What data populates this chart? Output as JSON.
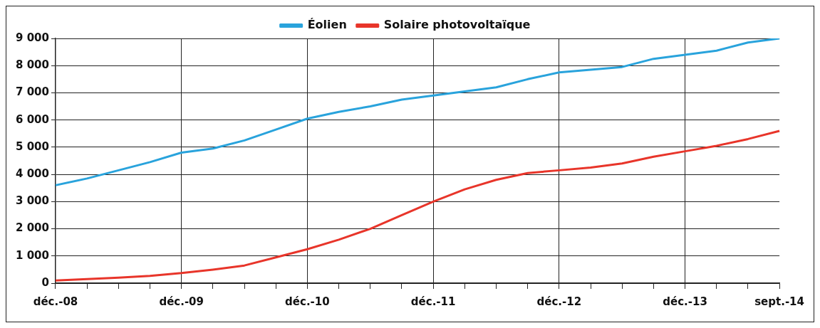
{
  "chart_data": {
    "type": "line",
    "categories": [
      "déc.-08",
      null,
      null,
      null,
      "déc.-09",
      null,
      null,
      null,
      "déc.-10",
      null,
      null,
      null,
      "déc.-11",
      null,
      null,
      null,
      "déc.-12",
      null,
      null,
      null,
      "déc.-13",
      null,
      null,
      "sept.-14"
    ],
    "series": [
      {
        "name": "Éolien",
        "color": "#29a3dc",
        "values": [
          3600,
          3850,
          4150,
          4450,
          4800,
          4950,
          5250,
          5650,
          6050,
          6300,
          6500,
          6750,
          6900,
          7050,
          7200,
          7500,
          7750,
          7850,
          7950,
          8250,
          8400,
          8550,
          8850,
          9000
        ]
      },
      {
        "name": "Solaire photovoltaïque",
        "color": "#e8352a",
        "values": [
          100,
          150,
          200,
          270,
          370,
          500,
          650,
          950,
          1250,
          1600,
          2000,
          2500,
          3000,
          3450,
          3800,
          4050,
          4150,
          4250,
          4400,
          4650,
          4850,
          5050,
          5300,
          5600
        ]
      }
    ],
    "ylim": [
      0,
      9000
    ],
    "yticks": [
      {
        "value": 0,
        "label": "0"
      },
      {
        "value": 1000,
        "label": "1 000"
      },
      {
        "value": 2000,
        "label": "2 000"
      },
      {
        "value": 3000,
        "label": "3 000"
      },
      {
        "value": 4000,
        "label": "4 000"
      },
      {
        "value": 5000,
        "label": "5 000"
      },
      {
        "value": 6000,
        "label": "6 000"
      },
      {
        "value": 7000,
        "label": "7 000"
      },
      {
        "value": 8000,
        "label": "8 000"
      },
      {
        "value": 9000,
        "label": "9 000"
      }
    ],
    "grid": true,
    "legend": "top",
    "marker": "none",
    "line_style": "solid"
  }
}
